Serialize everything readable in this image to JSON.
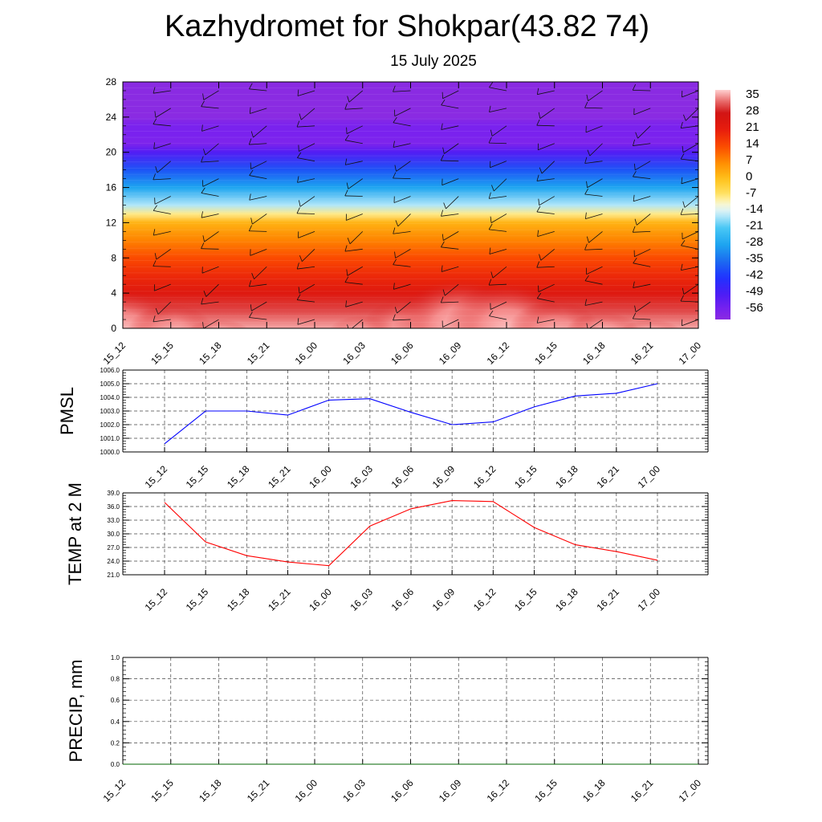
{
  "title": "Kazhydromet for Shokpar(43.82 74)",
  "subtitle": "15 July 2025",
  "time_labels": [
    "15_12",
    "15_15",
    "15_18",
    "15_21",
    "16_00",
    "16_03",
    "16_06",
    "16_09",
    "16_12",
    "16_15",
    "16_18",
    "16_21",
    "17_00"
  ],
  "chart_data": [
    {
      "type": "heatmap",
      "title": "",
      "xlabel": "",
      "ylabel": "",
      "x": [
        "15_12",
        "15_15",
        "15_18",
        "15_21",
        "16_00",
        "16_03",
        "16_06",
        "16_09",
        "16_12",
        "16_15",
        "16_18",
        "16_21",
        "17_00"
      ],
      "y_ticks": [
        0,
        4,
        8,
        12,
        16,
        20,
        24,
        28
      ],
      "ylim": [
        0,
        28
      ],
      "colorbar_ticks": [
        35,
        28,
        21,
        14,
        7,
        0,
        -7,
        -14,
        -21,
        -28,
        -35,
        -42,
        -49,
        -56
      ],
      "colorbar_range": [
        -60,
        38
      ],
      "overlay": "wind barbs",
      "temperature_profile_c": {
        "levels": [
          0,
          2,
          4,
          6,
          8,
          10,
          12,
          13,
          14,
          16,
          18,
          20,
          21,
          22,
          23,
          24,
          28
        ],
        "values": [
          36,
          31,
          24,
          19,
          14,
          8,
          2,
          -8,
          -16,
          -28,
          -38,
          -50,
          -57,
          -56,
          -56,
          -60,
          -60
        ]
      },
      "surface_anomaly_c": [
        10,
        6,
        2,
        1,
        0,
        3,
        8,
        13,
        12,
        7,
        4,
        2,
        1
      ]
    },
    {
      "type": "line",
      "ylabel": "PMSL",
      "ylim": [
        1000.0,
        1006.0
      ],
      "y_ticks": [
        "1000.0",
        "1001.0",
        "1002.0",
        "1003.0",
        "1004.0",
        "1005.0",
        "1006.0"
      ],
      "x": [
        "15_12",
        "15_15",
        "15_18",
        "15_21",
        "16_00",
        "16_03",
        "16_06",
        "16_09",
        "16_12",
        "16_15",
        "16_18",
        "16_21",
        "17_00"
      ],
      "series": [
        {
          "values": [
            1000.6,
            1003.0,
            1003.0,
            1002.7,
            1003.8,
            1003.9,
            1002.9,
            1002.0,
            1002.2,
            1003.3,
            1004.1,
            1004.3,
            1005.0
          ],
          "color": "#0000ff"
        }
      ]
    },
    {
      "type": "line",
      "ylabel": "TEMP at 2 M",
      "ylim": [
        21.0,
        39.0
      ],
      "y_ticks": [
        "21.0",
        "24.0",
        "27.0",
        "30.0",
        "33.0",
        "36.0",
        "39.0"
      ],
      "x": [
        "15_12",
        "15_15",
        "15_18",
        "15_21",
        "16_00",
        "16_03",
        "16_06",
        "16_09",
        "16_12",
        "16_15",
        "16_18",
        "16_21",
        "17_00"
      ],
      "series": [
        {
          "values": [
            36.9,
            28.2,
            25.2,
            23.8,
            23.0,
            31.7,
            35.5,
            37.3,
            37.1,
            31.4,
            27.6,
            26.1,
            24.2
          ],
          "color": "#ff0000"
        }
      ]
    },
    {
      "type": "line",
      "ylabel": "PRECIP, mm",
      "ylim": [
        0.0,
        1.0
      ],
      "y_ticks": [
        "0.0",
        "0.2",
        "0.4",
        "0.6",
        "0.8",
        "1.0"
      ],
      "x": [
        "15_12",
        "15_15",
        "15_18",
        "15_21",
        "16_00",
        "16_03",
        "16_06",
        "16_09",
        "16_12",
        "16_15",
        "16_18",
        "16_21",
        "17_00"
      ],
      "series": [
        {
          "values": [
            0,
            0,
            0,
            0,
            0,
            0,
            0,
            0,
            0,
            0,
            0,
            0,
            0
          ],
          "color": "#006400"
        }
      ]
    }
  ]
}
